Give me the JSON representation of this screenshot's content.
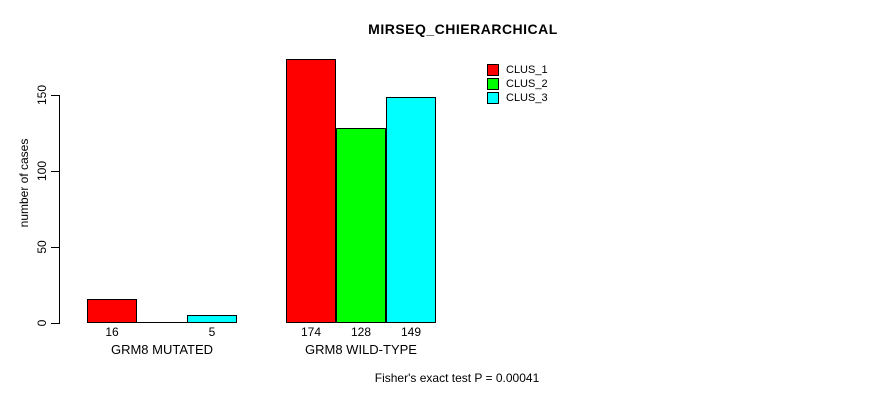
{
  "chart_data": {
    "type": "bar",
    "title": "MIRSEQ_CHIERARCHICAL",
    "xlabel": "",
    "ylabel": "number of cases",
    "categories": [
      "GRM8 MUTATED",
      "GRM8 WILD-TYPE"
    ],
    "series": [
      {
        "name": "CLUS_1",
        "color": "#FF0000",
        "values": [
          16,
          174
        ]
      },
      {
        "name": "CLUS_2",
        "color": "#00FF00",
        "values": [
          0,
          128
        ]
      },
      {
        "name": "CLUS_3",
        "color": "#00FFFF",
        "values": [
          5,
          149
        ]
      }
    ],
    "bar_value_labels": [
      [
        "16",
        null,
        "5"
      ],
      [
        "174",
        "128",
        "149"
      ]
    ],
    "yticks": [
      0,
      50,
      100,
      150
    ],
    "ylim": [
      0,
      150
    ],
    "grid": false,
    "legend": {
      "position": "top-right",
      "entries": [
        "CLUS_1",
        "CLUS_2",
        "CLUS_3"
      ]
    },
    "annotation": "Fisher's exact test P = 0.00041",
    "axis_color": "#000000",
    "background_color": "#FFFFFF"
  }
}
